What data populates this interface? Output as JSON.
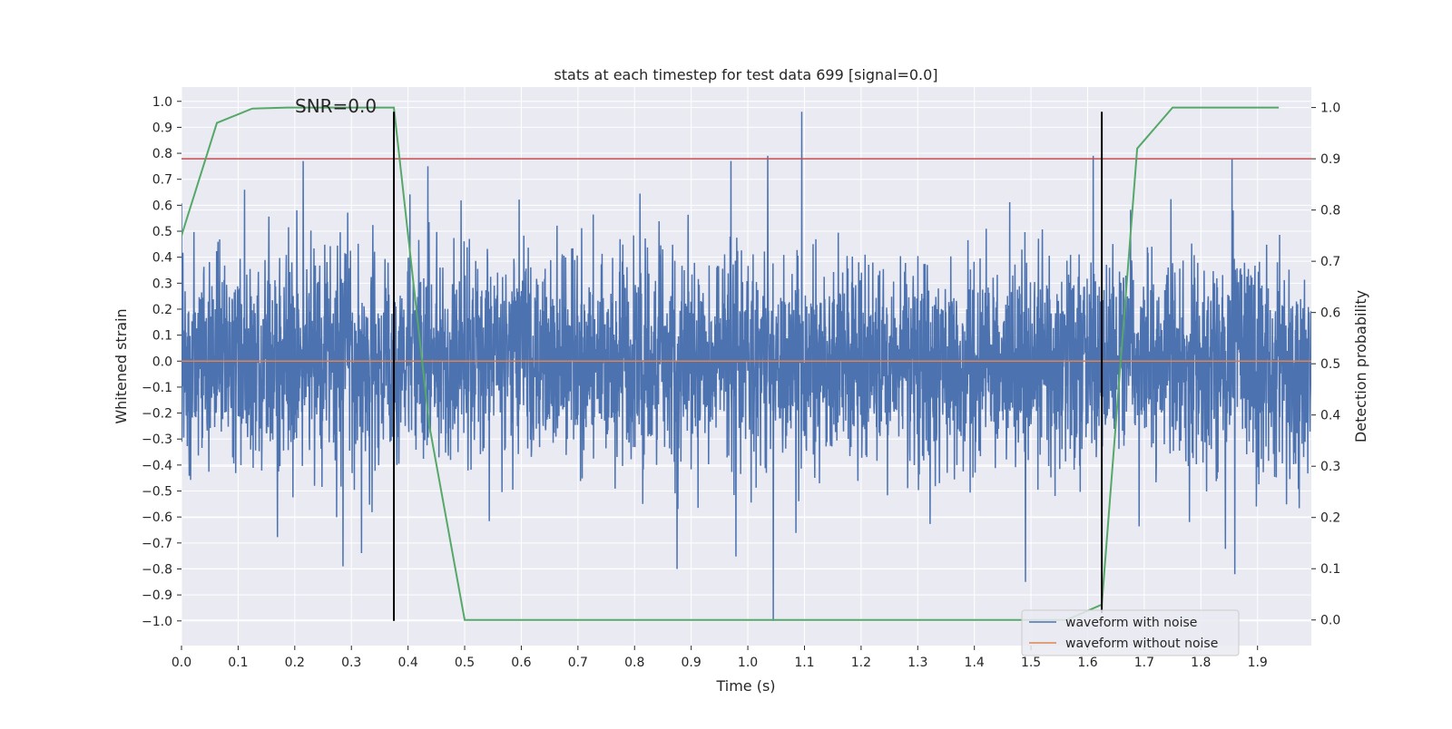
{
  "chart_data": {
    "type": "line",
    "title": "stats at each timestep for test data 699 [signal=0.0]",
    "xlabel": "Time (s)",
    "ylabel_left": "Whitened strain",
    "ylabel_right": "Detection probability",
    "xlim": [
      0.0,
      1.995
    ],
    "ylim_left": [
      -1.095,
      1.055
    ],
    "ylim_right": [
      -0.05,
      1.04
    ],
    "x_ticks": [
      "0.0",
      "0.1",
      "0.2",
      "0.3",
      "0.4",
      "0.5",
      "0.6",
      "0.7",
      "0.8",
      "0.9",
      "1.0",
      "1.1",
      "1.2",
      "1.3",
      "1.4",
      "1.5",
      "1.6",
      "1.7",
      "1.8",
      "1.9"
    ],
    "y_left_ticks": [
      "−1.0",
      "−0.9",
      "−0.8",
      "−0.7",
      "−0.6",
      "−0.5",
      "−0.4",
      "−0.3",
      "−0.2",
      "−0.1",
      "0.0",
      "0.1",
      "0.2",
      "0.3",
      "0.4",
      "0.5",
      "0.6",
      "0.7",
      "0.8",
      "0.9",
      "1.0"
    ],
    "y_right_ticks": [
      "0.0",
      "0.1",
      "0.2",
      "0.3",
      "0.4",
      "0.5",
      "0.6",
      "0.7",
      "0.8",
      "0.9",
      "1.0"
    ],
    "grid": true,
    "background": "#eaeaf2",
    "annotation": "SNR=0.0",
    "legend_position": "lower-right",
    "series": [
      {
        "name": "waveform with noise",
        "axis": "left",
        "color": "#4c72b0",
        "sample_rate": 2048,
        "noise_sigma": 0.2,
        "spikes": [
          {
            "x": 1.045,
            "y": -1.0
          },
          {
            "x": 1.095,
            "y": 0.96
          },
          {
            "x": 0.215,
            "y": 0.77
          },
          {
            "x": 0.435,
            "y": 0.75
          },
          {
            "x": 0.97,
            "y": 0.77
          },
          {
            "x": 1.035,
            "y": 0.79
          },
          {
            "x": 1.61,
            "y": 0.79
          },
          {
            "x": 1.855,
            "y": 0.78
          },
          {
            "x": 1.49,
            "y": -0.85
          },
          {
            "x": 1.86,
            "y": -0.82
          },
          {
            "x": 0.875,
            "y": -0.8
          },
          {
            "x": 0.285,
            "y": -0.79
          }
        ]
      },
      {
        "name": "waveform without noise",
        "axis": "left",
        "color": "#dd8452",
        "x": [
          0.0,
          1.995
        ],
        "y": [
          0.0,
          0.0
        ]
      },
      {
        "axis": "right",
        "color": "#55a868",
        "x": [
          0.0,
          0.0625,
          0.125,
          0.1875,
          0.25,
          0.3125,
          0.375,
          0.4375,
          0.5,
          0.5625,
          0.625,
          0.6875,
          0.75,
          0.8125,
          0.875,
          0.9375,
          1.0,
          1.0625,
          1.125,
          1.1875,
          1.25,
          1.3125,
          1.375,
          1.4375,
          1.5,
          1.5625,
          1.625,
          1.6875,
          1.75,
          1.8125,
          1.875,
          1.9375
        ],
        "y": [
          0.75,
          0.97,
          0.998,
          1.0,
          1.0,
          1.0,
          1.0,
          0.38,
          0.0,
          0.0,
          0.0,
          0.0,
          0.0,
          0.0,
          0.0,
          0.0,
          0.0,
          0.0,
          0.0,
          0.0,
          0.0,
          0.0,
          0.0,
          0.0,
          0.0,
          0.0,
          0.03,
          0.92,
          1.0,
          1.0,
          1.0,
          1.0
        ]
      }
    ],
    "threshold": {
      "axis": "right",
      "y": 0.9,
      "color": "#c44e52"
    },
    "vlines": [
      {
        "x": 0.375,
        "y_range": [
          -1.0,
          0.96
        ],
        "color": "#000000"
      },
      {
        "x": 1.625,
        "y_range": [
          -0.97,
          0.96
        ],
        "color": "#000000"
      }
    ]
  }
}
